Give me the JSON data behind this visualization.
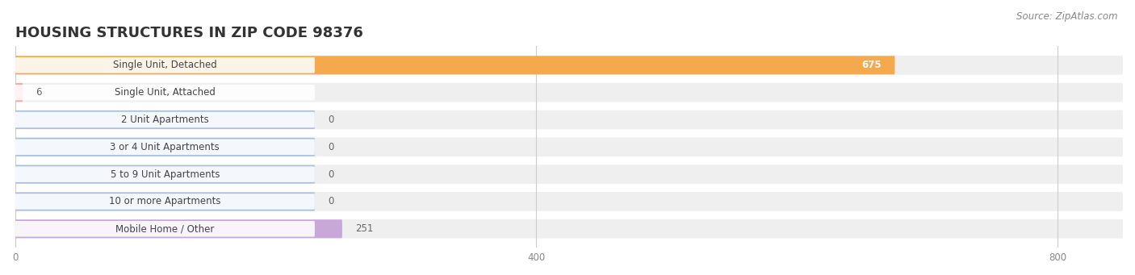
{
  "title": "HOUSING STRUCTURES IN ZIP CODE 98376",
  "source": "Source: ZipAtlas.com",
  "categories": [
    "Single Unit, Detached",
    "Single Unit, Attached",
    "2 Unit Apartments",
    "3 or 4 Unit Apartments",
    "5 to 9 Unit Apartments",
    "10 or more Apartments",
    "Mobile Home / Other"
  ],
  "values": [
    675,
    6,
    0,
    0,
    0,
    0,
    251
  ],
  "bar_colors": [
    "#f5a94e",
    "#f4a0a0",
    "#a8c0e0",
    "#a8c0e0",
    "#a8c0e0",
    "#a8c0e0",
    "#c8a8d8"
  ],
  "bg_row_color": "#efefef",
  "xlim_max": 850,
  "xticks": [
    0,
    400,
    800
  ],
  "title_fontsize": 13,
  "label_fontsize": 8.5,
  "value_fontsize": 8.5,
  "source_fontsize": 8.5,
  "background_color": "#ffffff",
  "zero_stub_value": 230
}
